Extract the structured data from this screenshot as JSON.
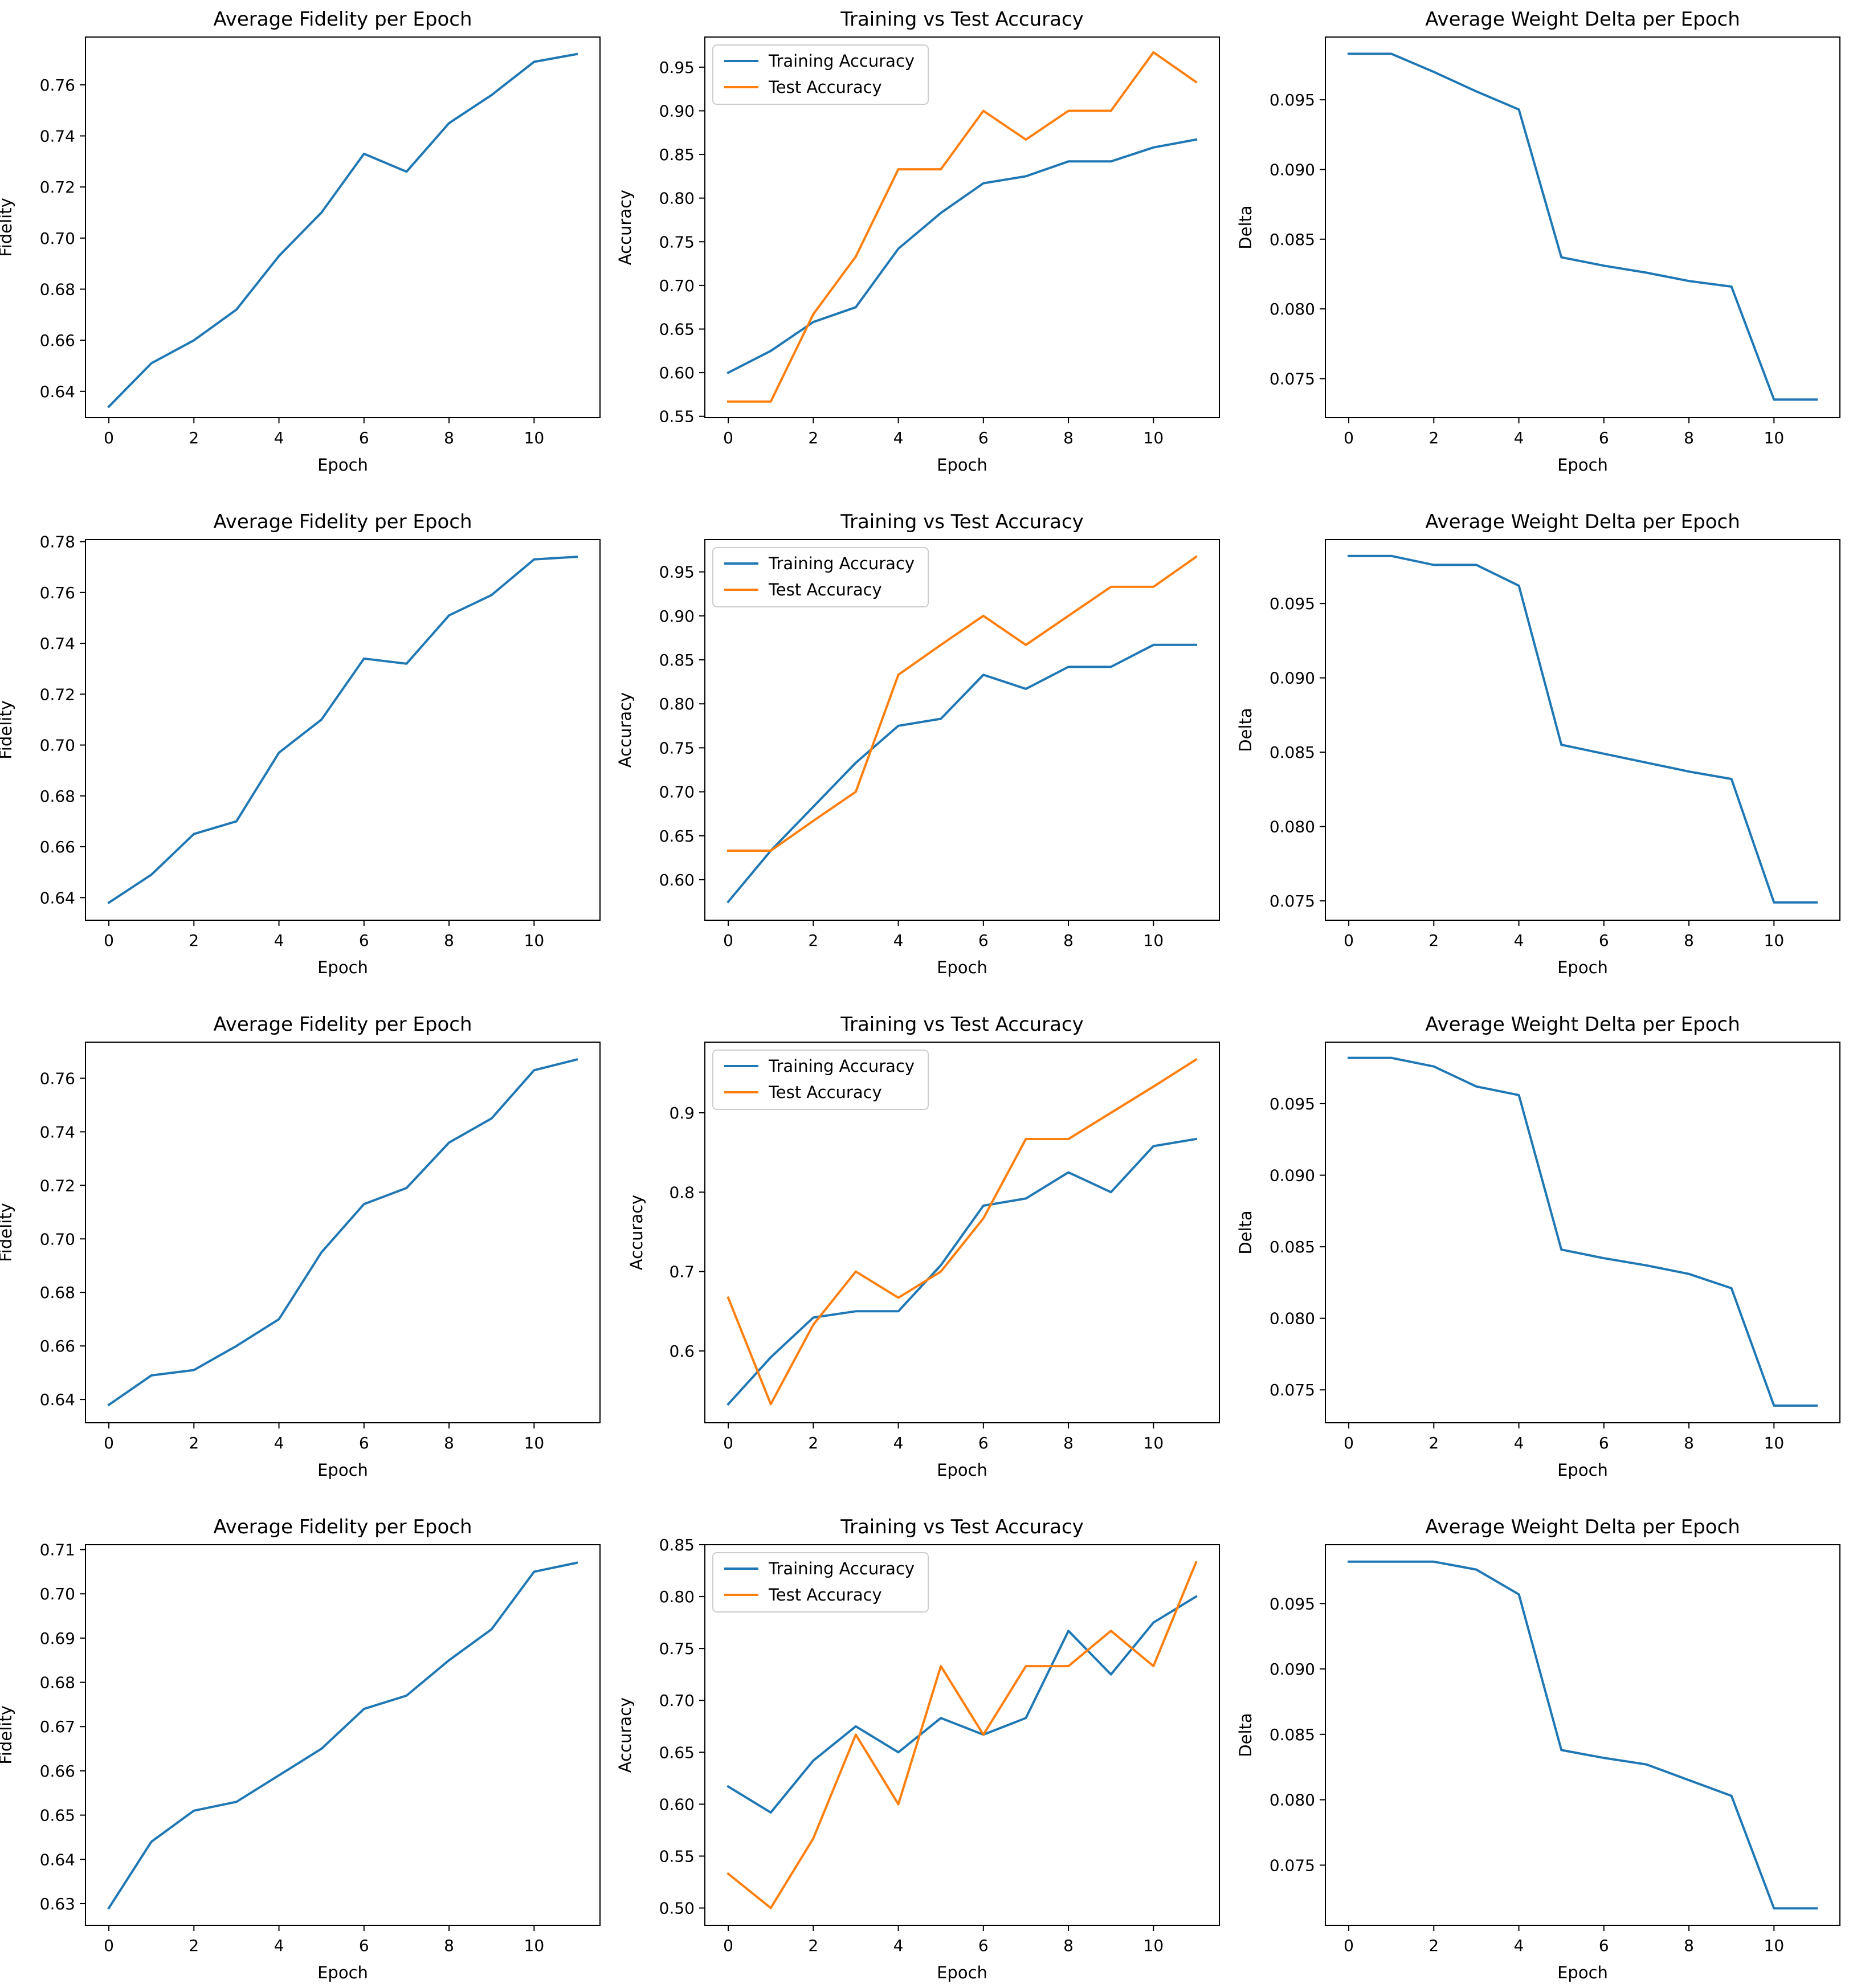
{
  "colors": {
    "training": "#1f77b4",
    "test": "#ff7f0e",
    "axis": "#000000",
    "legend_border": "#cccccc"
  },
  "chart_data": [
    {
      "type": "line",
      "title": "Average Fidelity per Epoch",
      "xlabel": "Epoch",
      "ylabel": "Fidelity",
      "xlim": [
        -0.55,
        11.55
      ],
      "ylim": [
        0.6297,
        0.7787
      ],
      "yticks": [
        0.64,
        0.66,
        0.68,
        0.7,
        0.72,
        0.74,
        0.76
      ],
      "ytick_labels": [
        "0.64",
        "0.66",
        "0.68",
        "0.70",
        "0.72",
        "0.74",
        "0.76"
      ],
      "x": [
        0,
        1,
        2,
        3,
        4,
        5,
        6,
        7,
        8,
        9,
        10,
        11
      ],
      "series": [
        {
          "name": "Fidelity",
          "color": "#1f77b4",
          "values": [
            0.634,
            0.651,
            0.66,
            0.672,
            0.693,
            0.71,
            0.733,
            0.726,
            0.745,
            0.756,
            0.769,
            0.772
          ]
        }
      ]
    },
    {
      "type": "line",
      "title": "Training vs Test Accuracy",
      "xlabel": "Epoch",
      "ylabel": "Accuracy",
      "xlim": [
        -0.55,
        11.55
      ],
      "ylim": [
        0.5485,
        0.9845
      ],
      "yticks": [
        0.55,
        0.6,
        0.65,
        0.7,
        0.75,
        0.8,
        0.85,
        0.9,
        0.95
      ],
      "ytick_labels": [
        "0.55",
        "0.60",
        "0.65",
        "0.70",
        "0.75",
        "0.80",
        "0.85",
        "0.90",
        "0.95"
      ],
      "legend": [
        "Training Accuracy",
        "Test Accuracy"
      ],
      "x": [
        0,
        1,
        2,
        3,
        4,
        5,
        6,
        7,
        8,
        9,
        10,
        11
      ],
      "series": [
        {
          "name": "Training Accuracy",
          "color": "#1f77b4",
          "values": [
            0.6,
            0.625,
            0.658,
            0.675,
            0.742,
            0.783,
            0.817,
            0.825,
            0.842,
            0.842,
            0.858,
            0.867
          ]
        },
        {
          "name": "Test Accuracy",
          "color": "#ff7f0e",
          "values": [
            0.567,
            0.567,
            0.667,
            0.733,
            0.833,
            0.833,
            0.9,
            0.867,
            0.9,
            0.9,
            0.967,
            0.933
          ]
        }
      ]
    },
    {
      "type": "line",
      "title": "Average Weight Delta per Epoch",
      "xlabel": "Epoch",
      "ylabel": "Delta",
      "xlim": [
        -0.55,
        11.55
      ],
      "ylim": [
        0.0722,
        0.0995
      ],
      "yticks": [
        0.075,
        0.08,
        0.085,
        0.09,
        0.095
      ],
      "ytick_labels": [
        "0.075",
        "0.080",
        "0.085",
        "0.090",
        "0.095"
      ],
      "x": [
        0,
        1,
        2,
        3,
        4,
        5,
        6,
        7,
        8,
        9,
        10,
        11
      ],
      "series": [
        {
          "name": "Delta",
          "color": "#1f77b4",
          "values": [
            0.0983,
            0.0983,
            0.097,
            0.0956,
            0.0943,
            0.0837,
            0.0831,
            0.0826,
            0.082,
            0.0816,
            0.0735,
            0.0735
          ]
        }
      ]
    },
    {
      "type": "line",
      "title": "Average Fidelity per Epoch",
      "xlabel": "Epoch",
      "ylabel": "Fidelity",
      "xlim": [
        -0.55,
        11.55
      ],
      "ylim": [
        0.6311,
        0.7808
      ],
      "yticks": [
        0.64,
        0.66,
        0.68,
        0.7,
        0.72,
        0.74,
        0.76,
        0.78
      ],
      "ytick_labels": [
        "0.64",
        "0.66",
        "0.68",
        "0.70",
        "0.72",
        "0.74",
        "0.76",
        "0.78"
      ],
      "x": [
        0,
        1,
        2,
        3,
        4,
        5,
        6,
        7,
        8,
        9,
        10,
        11
      ],
      "series": [
        {
          "name": "Fidelity",
          "color": "#1f77b4",
          "values": [
            0.638,
            0.649,
            0.665,
            0.67,
            0.697,
            0.71,
            0.734,
            0.732,
            0.751,
            0.759,
            0.773,
            0.774
          ]
        }
      ]
    },
    {
      "type": "line",
      "title": "Training vs Test Accuracy",
      "xlabel": "Epoch",
      "ylabel": "Accuracy",
      "xlim": [
        -0.55,
        11.55
      ],
      "ylim": [
        0.554,
        0.9867
      ],
      "yticks": [
        0.6,
        0.65,
        0.7,
        0.75,
        0.8,
        0.85,
        0.9,
        0.95
      ],
      "ytick_labels": [
        "0.60",
        "0.65",
        "0.70",
        "0.75",
        "0.80",
        "0.85",
        "0.90",
        "0.95"
      ],
      "legend": [
        "Training Accuracy",
        "Test Accuracy"
      ],
      "x": [
        0,
        1,
        2,
        3,
        4,
        5,
        6,
        7,
        8,
        9,
        10,
        11
      ],
      "series": [
        {
          "name": "Training Accuracy",
          "color": "#1f77b4",
          "values": [
            0.575,
            0.633,
            0.683,
            0.733,
            0.775,
            0.783,
            0.833,
            0.817,
            0.842,
            0.842,
            0.867,
            0.867
          ]
        },
        {
          "name": "Test Accuracy",
          "color": "#ff7f0e",
          "values": [
            0.633,
            0.633,
            0.667,
            0.7,
            0.833,
            0.867,
            0.9,
            0.867,
            0.9,
            0.933,
            0.933,
            0.967
          ]
        }
      ]
    },
    {
      "type": "line",
      "title": "Average Weight Delta per Epoch",
      "xlabel": "Epoch",
      "ylabel": "Delta",
      "xlim": [
        -0.55,
        11.55
      ],
      "ylim": [
        0.0737,
        0.0993
      ],
      "yticks": [
        0.075,
        0.08,
        0.085,
        0.09,
        0.095
      ],
      "ytick_labels": [
        "0.075",
        "0.080",
        "0.085",
        "0.090",
        "0.095"
      ],
      "x": [
        0,
        1,
        2,
        3,
        4,
        5,
        6,
        7,
        8,
        9,
        10,
        11
      ],
      "series": [
        {
          "name": "Delta",
          "color": "#1f77b4",
          "values": [
            0.0982,
            0.0982,
            0.0976,
            0.0976,
            0.0962,
            0.0855,
            0.0849,
            0.0843,
            0.0837,
            0.0832,
            0.0749,
            0.0749
          ]
        }
      ]
    },
    {
      "type": "line",
      "title": "Average Fidelity per Epoch",
      "xlabel": "Epoch",
      "ylabel": "Fidelity",
      "xlim": [
        -0.55,
        11.55
      ],
      "ylim": [
        0.6313,
        0.7735
      ],
      "yticks": [
        0.64,
        0.66,
        0.68,
        0.7,
        0.72,
        0.74,
        0.76
      ],
      "ytick_labels": [
        "0.64",
        "0.66",
        "0.68",
        "0.70",
        "0.72",
        "0.74",
        "0.76"
      ],
      "x": [
        0,
        1,
        2,
        3,
        4,
        5,
        6,
        7,
        8,
        9,
        10,
        11
      ],
      "series": [
        {
          "name": "Fidelity",
          "color": "#1f77b4",
          "values": [
            0.638,
            0.649,
            0.651,
            0.66,
            0.67,
            0.695,
            0.713,
            0.719,
            0.736,
            0.745,
            0.763,
            0.767
          ]
        }
      ]
    },
    {
      "type": "line",
      "title": "Training vs Test Accuracy",
      "xlabel": "Epoch",
      "ylabel": "Accuracy",
      "xlim": [
        -0.55,
        11.55
      ],
      "ylim": [
        0.5095,
        0.989
      ],
      "yticks": [
        0.6,
        0.7,
        0.8,
        0.9
      ],
      "ytick_labels": [
        "0.6",
        "0.7",
        "0.8",
        "0.9"
      ],
      "legend": [
        "Training Accuracy",
        "Test Accuracy"
      ],
      "x": [
        0,
        1,
        2,
        3,
        4,
        5,
        6,
        7,
        8,
        9,
        10,
        11
      ],
      "series": [
        {
          "name": "Training Accuracy",
          "color": "#1f77b4",
          "values": [
            0.533,
            0.592,
            0.642,
            0.65,
            0.65,
            0.708,
            0.783,
            0.792,
            0.825,
            0.8,
            0.858,
            0.867
          ]
        },
        {
          "name": "Test Accuracy",
          "color": "#ff7f0e",
          "values": [
            0.667,
            0.533,
            0.633,
            0.7,
            0.667,
            0.7,
            0.767,
            0.867,
            0.867,
            0.9,
            0.933,
            0.967
          ]
        }
      ]
    },
    {
      "type": "line",
      "title": "Average Weight Delta per Epoch",
      "xlabel": "Epoch",
      "ylabel": "Delta",
      "xlim": [
        -0.55,
        11.55
      ],
      "ylim": [
        0.0727,
        0.0993
      ],
      "yticks": [
        0.075,
        0.08,
        0.085,
        0.09,
        0.095
      ],
      "ytick_labels": [
        "0.075",
        "0.080",
        "0.085",
        "0.090",
        "0.095"
      ],
      "x": [
        0,
        1,
        2,
        3,
        4,
        5,
        6,
        7,
        8,
        9,
        10,
        11
      ],
      "series": [
        {
          "name": "Delta",
          "color": "#1f77b4",
          "values": [
            0.0982,
            0.0982,
            0.0976,
            0.0962,
            0.0956,
            0.0848,
            0.0842,
            0.0837,
            0.0831,
            0.0821,
            0.0739,
            0.0739
          ]
        }
      ]
    },
    {
      "type": "line",
      "title": "Average Fidelity per Epoch",
      "xlabel": "Epoch",
      "ylabel": "Fidelity",
      "xlim": [
        -0.55,
        11.55
      ],
      "ylim": [
        0.6251,
        0.7111
      ],
      "yticks": [
        0.63,
        0.64,
        0.65,
        0.66,
        0.67,
        0.68,
        0.69,
        0.7,
        0.71
      ],
      "ytick_labels": [
        "0.63",
        "0.64",
        "0.65",
        "0.66",
        "0.67",
        "0.68",
        "0.69",
        "0.70",
        "0.71"
      ],
      "x": [
        0,
        1,
        2,
        3,
        4,
        5,
        6,
        7,
        8,
        9,
        10,
        11
      ],
      "series": [
        {
          "name": "Fidelity",
          "color": "#1f77b4",
          "values": [
            0.629,
            0.644,
            0.651,
            0.653,
            0.659,
            0.665,
            0.674,
            0.677,
            0.685,
            0.692,
            0.705,
            0.707
          ]
        }
      ]
    },
    {
      "type": "line",
      "title": "Training vs Test Accuracy",
      "xlabel": "Epoch",
      "ylabel": "Accuracy",
      "xlim": [
        -0.55,
        11.55
      ],
      "ylim": [
        0.4833,
        0.85
      ],
      "yticks": [
        0.5,
        0.55,
        0.6,
        0.65,
        0.7,
        0.75,
        0.8,
        0.85
      ],
      "ytick_labels": [
        "0.50",
        "0.55",
        "0.60",
        "0.65",
        "0.70",
        "0.75",
        "0.80",
        "0.85"
      ],
      "legend": [
        "Training Accuracy",
        "Test Accuracy"
      ],
      "x": [
        0,
        1,
        2,
        3,
        4,
        5,
        6,
        7,
        8,
        9,
        10,
        11
      ],
      "series": [
        {
          "name": "Training Accuracy",
          "color": "#1f77b4",
          "values": [
            0.617,
            0.592,
            0.642,
            0.675,
            0.65,
            0.683,
            0.667,
            0.683,
            0.767,
            0.725,
            0.775,
            0.8
          ]
        },
        {
          "name": "Test Accuracy",
          "color": "#ff7f0e",
          "values": [
            0.533,
            0.5,
            0.567,
            0.667,
            0.6,
            0.733,
            0.667,
            0.733,
            0.733,
            0.767,
            0.733,
            0.833
          ]
        }
      ]
    },
    {
      "type": "line",
      "title": "Average Weight Delta per Epoch",
      "xlabel": "Epoch",
      "ylabel": "Delta",
      "xlim": [
        -0.55,
        11.55
      ],
      "ylim": [
        0.0704,
        0.0995
      ],
      "yticks": [
        0.075,
        0.08,
        0.085,
        0.09,
        0.095
      ],
      "ytick_labels": [
        "0.075",
        "0.080",
        "0.085",
        "0.090",
        "0.095"
      ],
      "x": [
        0,
        1,
        2,
        3,
        4,
        5,
        6,
        7,
        8,
        9,
        10,
        11
      ],
      "series": [
        {
          "name": "Delta",
          "color": "#1f77b4",
          "values": [
            0.0982,
            0.0982,
            0.0982,
            0.0976,
            0.0957,
            0.0838,
            0.0832,
            0.0827,
            0.0815,
            0.0803,
            0.0717,
            0.0717
          ]
        }
      ]
    }
  ],
  "xticks": [
    0,
    2,
    4,
    6,
    8,
    10
  ],
  "xtick_labels": [
    "0",
    "2",
    "4",
    "6",
    "8",
    "10"
  ]
}
